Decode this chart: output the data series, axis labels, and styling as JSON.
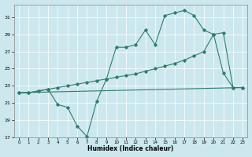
{
  "xlabel": "Humidex (Indice chaleur)",
  "xlim": [
    -0.5,
    23.5
  ],
  "ylim": [
    17,
    32.5
  ],
  "yticks": [
    17,
    19,
    21,
    23,
    25,
    27,
    29,
    31
  ],
  "xticks": [
    0,
    1,
    2,
    3,
    4,
    5,
    6,
    7,
    8,
    9,
    10,
    11,
    12,
    13,
    14,
    15,
    16,
    17,
    18,
    19,
    20,
    21,
    22,
    23
  ],
  "bg_color": "#cce8ee",
  "line_color": "#2e7d6e",
  "zigzag": {
    "x": [
      0,
      1,
      2,
      3,
      4,
      5,
      6,
      7,
      8,
      9,
      10,
      11,
      12,
      13,
      14,
      15,
      16,
      17,
      18,
      19,
      20,
      21,
      22,
      23
    ],
    "y": [
      22.2,
      22.2,
      22.4,
      22.6,
      20.8,
      20.5,
      18.3,
      17.1,
      21.2,
      23.8,
      27.5,
      27.5,
      27.8,
      29.5,
      27.8,
      31.2,
      31.5,
      31.8,
      31.2,
      29.5,
      29.0,
      24.5,
      22.8,
      22.8
    ]
  },
  "upper_env": {
    "x": [
      0,
      1,
      2,
      3,
      4,
      5,
      6,
      7,
      8,
      9,
      10,
      11,
      12,
      13,
      14,
      15,
      16,
      17,
      18,
      19,
      20,
      21,
      22,
      23
    ],
    "y": [
      22.2,
      22.2,
      22.4,
      22.6,
      22.8,
      23.0,
      23.2,
      23.4,
      23.6,
      23.8,
      24.0,
      24.2,
      24.4,
      24.7,
      25.0,
      25.3,
      25.6,
      26.0,
      26.5,
      27.0,
      29.0,
      29.2,
      22.8,
      22.8
    ]
  },
  "flat_line": {
    "x": [
      0,
      23
    ],
    "y": [
      22.2,
      22.8
    ]
  }
}
